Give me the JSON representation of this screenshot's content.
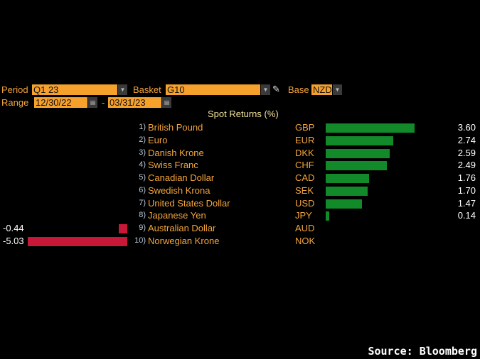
{
  "controls": {
    "period_label": "Period",
    "period_value": "Q1 23",
    "basket_label": "Basket",
    "basket_value": "G10",
    "base_label": "Base",
    "base_value": "NZD",
    "range_label": "Range",
    "range_start": "12/30/22",
    "range_separator": "-",
    "range_end": "03/31/23"
  },
  "chart_data": {
    "type": "bar",
    "orientation": "horizontal",
    "title": "Spot Returns (%)",
    "categories": [
      "British Pound",
      "Euro",
      "Danish Krone",
      "Swiss Franc",
      "Canadian Dollar",
      "Swedish Krona",
      "United States Dollar",
      "Japanese Yen",
      "Australian Dollar",
      "Norwegian Krone"
    ],
    "ranks": [
      "1)",
      "2)",
      "3)",
      "4)",
      "5)",
      "6)",
      "7)",
      "8)",
      "9)",
      "10)"
    ],
    "codes": [
      "GBP",
      "EUR",
      "DKK",
      "CHF",
      "CAD",
      "SEK",
      "USD",
      "JPY",
      "AUD",
      "NOK"
    ],
    "values": [
      3.6,
      2.74,
      2.59,
      2.49,
      1.76,
      1.7,
      1.47,
      0.14,
      -0.44,
      -5.03
    ],
    "value_labels": [
      "3.60",
      "2.74",
      "2.59",
      "2.49",
      "1.76",
      "1.70",
      "1.47",
      "0.14",
      "-0.44",
      "-5.03"
    ],
    "colors": {
      "positive": "#138a2a",
      "negative": "#c8183a"
    }
  },
  "footer": {
    "source": "Source: Bloomberg"
  }
}
